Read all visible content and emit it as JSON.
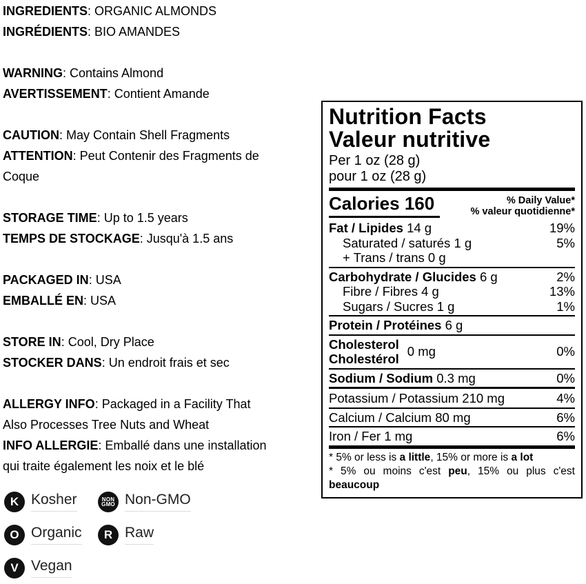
{
  "info": {
    "sections": [
      {
        "lines": [
          {
            "b": "INGREDIENTS",
            "t": ": ORGANIC ALMONDS"
          },
          {
            "b": "INGRÉDIENTS",
            "t": ": BIO AMANDES"
          }
        ]
      },
      {
        "lines": [
          {
            "b": "WARNING",
            "t": ": Contains Almond"
          },
          {
            "b": "AVERTISSEMENT",
            "t": ": Contient Amande"
          }
        ]
      },
      {
        "lines": [
          {
            "b": "CAUTION",
            "t": ": May Contain Shell Fragments"
          },
          {
            "b": "ATTENTION",
            "t": ": Peut Contenir des Fragments de"
          },
          {
            "b": "",
            "t": "Coque"
          }
        ]
      },
      {
        "lines": [
          {
            "b": "STORAGE TIME",
            "t": ": Up to 1.5 years"
          },
          {
            "b": "TEMPS DE STOCKAGE",
            "t": ": Jusqu'à 1.5 ans"
          }
        ]
      },
      {
        "lines": [
          {
            "b": "PACKAGED IN",
            "t": ": USA"
          },
          {
            "b": "EMBALLÉ EN",
            "t": ": USA"
          }
        ]
      },
      {
        "lines": [
          {
            "b": "STORE IN",
            "t": ": Cool, Dry Place"
          },
          {
            "b": "STOCKER DANS",
            "t": ": Un endroit frais et sec"
          }
        ]
      },
      {
        "lines": [
          {
            "b": "ALLERGY INFO",
            "t": ": Packaged in a Facility That"
          },
          {
            "b": "",
            "t": "Also Processes Tree Nuts and Wheat"
          },
          {
            "b": "INFO ALLERGIE",
            "t": ": Emballé dans une installation"
          },
          {
            "b": "",
            "t": "qui traite également les noix et le blé"
          }
        ]
      }
    ]
  },
  "nf": {
    "title_en": "Nutrition Facts",
    "title_fr": "Valeur nutritive",
    "serving_en": "Per 1 oz (28 g)",
    "serving_fr": "pour 1 oz (28 g)",
    "calories_label": "Calories",
    "calories_value": "160",
    "dv_en": "% Daily Value*",
    "dv_fr": "% valeur quotidienne*",
    "fat": {
      "b": "Fat / Lipides",
      "v": "14 g",
      "dv": "19%"
    },
    "sat": {
      "t": "Saturated / saturés 1 g",
      "dv": "5%"
    },
    "trans": {
      "t": "+ Trans / trans 0 g"
    },
    "carb": {
      "b": "Carbohydrate / Glucides",
      "v": "6 g",
      "dv": "2%"
    },
    "fibre": {
      "t": "Fibre / Fibres 4 g",
      "dv": "13%"
    },
    "sugars": {
      "t": "Sugars / Sucres 1 g",
      "dv": "1%"
    },
    "protein": {
      "b": "Protein / Protéines",
      "v": "6 g"
    },
    "chol": {
      "b1": "Cholesterol",
      "b2": "Cholestérol",
      "v": "0 mg",
      "dv": "0%"
    },
    "sodium": {
      "b": "Sodium / Sodium",
      "v": "0.3 mg",
      "dv": "0%"
    },
    "potassium": {
      "t": "Potassium / Potassium 210 mg",
      "dv": "4%"
    },
    "calcium": {
      "t": "Calcium / Calcium 80 mg",
      "dv": "6%"
    },
    "iron": {
      "t": "Iron / Fer 1 mg",
      "dv": "6%"
    },
    "footnote": {
      "en1": "* 5% or less is ",
      "en_b1": "a little",
      "en2": ", 15% or more is ",
      "en_b2": "a lot",
      "fr1": "* 5% ou moins c'est ",
      "fr_b1": "peu",
      "fr2": ", 15% ou plus c'est",
      "fr_b2": "beaucoup"
    }
  },
  "badges": [
    {
      "letter": "K",
      "label": "Kosher"
    },
    {
      "letter_top": "NON",
      "letter_bottom": "GMO",
      "label": "Non-GMO"
    },
    {
      "letter": "O",
      "label": "Organic"
    },
    {
      "letter": "R",
      "label": "Raw"
    },
    {
      "letter": "V",
      "label": "Vegan"
    }
  ],
  "colors": {
    "ink": "#000000",
    "badge_fill": "#121212",
    "underline": "#dcdcdc"
  }
}
